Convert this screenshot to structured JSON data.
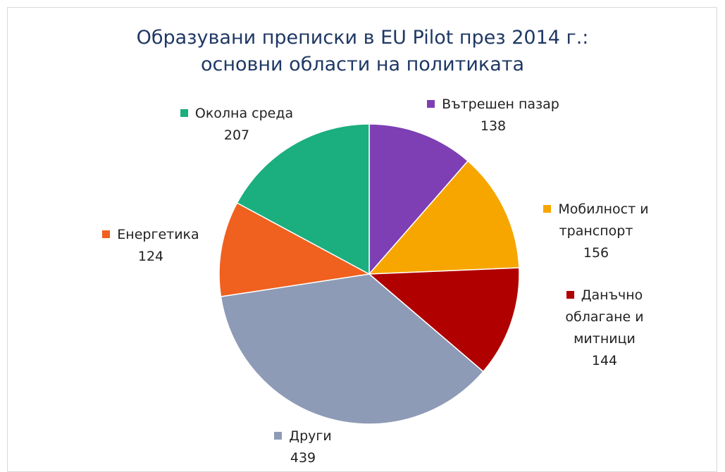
{
  "chart_data": {
    "type": "pie",
    "title": [
      "Образувани преписки в EU Pilot през 2014 г.:",
      "основни области на политиката"
    ],
    "categories": [
      "Вътрешен пазар",
      "Мобилност и транспорт",
      "Данъчно облагане и митници",
      "Други",
      "Енергетика",
      "Околна среда"
    ],
    "values": [
      138,
      156,
      144,
      439,
      124,
      207
    ],
    "colors": [
      "#7d3fb3",
      "#f7a600",
      "#b00000",
      "#8e9bb6",
      "#f0601e",
      "#1bae7e"
    ]
  }
}
